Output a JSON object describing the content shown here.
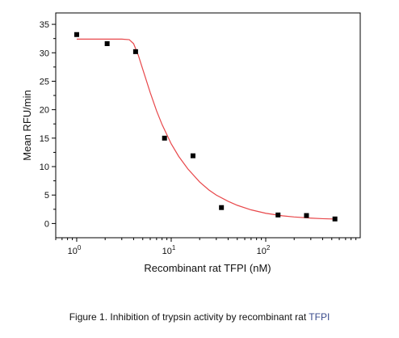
{
  "chart_data": {
    "type": "scatter",
    "xlabel": "Recombinant rat TFPI (nM)",
    "ylabel": "Mean RFU/min",
    "x_scale": "log10",
    "xlim": [
      0.6,
      1000
    ],
    "ylim": [
      -2.5,
      37
    ],
    "x_ticks": [
      {
        "value": 1,
        "label_base": "10",
        "label_exp": "0"
      },
      {
        "value": 10,
        "label_base": "10",
        "label_exp": "1"
      },
      {
        "value": 100,
        "label_base": "10",
        "label_exp": "2"
      }
    ],
    "y_ticks": [
      0,
      5,
      10,
      15,
      20,
      25,
      30,
      35
    ],
    "grid": false,
    "series": [
      {
        "kind": "points",
        "marker": "square",
        "color": "#000000",
        "x": [
          1.0,
          2.1,
          4.2,
          8.5,
          17,
          34,
          135,
          270,
          540
        ],
        "y": [
          33.2,
          31.6,
          30.2,
          15.0,
          11.9,
          2.8,
          1.5,
          1.4,
          0.8
        ]
      },
      {
        "kind": "fit-curve",
        "color": "#e8474a",
        "x": [
          1.0,
          2.0,
          3.0,
          3.6,
          4.0,
          4.5,
          5.0,
          6.0,
          7.0,
          8.0,
          10,
          12,
          15,
          20,
          25,
          30,
          40,
          50,
          70,
          100,
          150,
          200,
          300,
          400,
          550
        ],
        "y": [
          32.4,
          32.4,
          32.4,
          32.3,
          31.6,
          29.5,
          27.1,
          23.0,
          19.8,
          17.4,
          14.0,
          11.8,
          9.6,
          7.3,
          5.9,
          5.0,
          3.9,
          3.2,
          2.4,
          1.8,
          1.35,
          1.15,
          0.95,
          0.85,
          0.78
        ]
      }
    ]
  },
  "caption": {
    "text": "Figure 1. Inhibition of trypsin activity by recombinant rat",
    "accent_text": "TFPI"
  }
}
